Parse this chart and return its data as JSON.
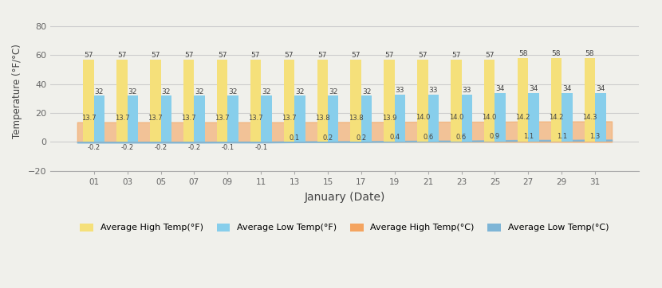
{
  "dates": [
    "01",
    "03",
    "05",
    "07",
    "09",
    "11",
    "13",
    "15",
    "17",
    "19",
    "21",
    "23",
    "25",
    "27",
    "29",
    "31"
  ],
  "high_f": [
    57,
    57,
    57,
    57,
    57,
    57,
    57,
    57,
    57,
    57,
    57,
    57,
    57,
    58,
    58,
    58
  ],
  "low_f": [
    32,
    32,
    32,
    32,
    32,
    32,
    32,
    32,
    32,
    33,
    33,
    33,
    34,
    34,
    34,
    34
  ],
  "high_c": [
    13.7,
    13.7,
    13.7,
    13.7,
    13.7,
    13.7,
    13.7,
    13.8,
    13.8,
    13.9,
    14.0,
    14.0,
    14.0,
    14.2,
    14.2,
    14.3
  ],
  "low_c": [
    -0.2,
    -0.2,
    -0.2,
    -0.2,
    -0.1,
    -0.1,
    0.1,
    0.2,
    0.2,
    0.4,
    0.6,
    0.6,
    0.9,
    1.1,
    1.1,
    1.3
  ],
  "color_high_f": "#F5E07A",
  "color_low_f": "#87CEEB",
  "color_high_c": "#F4A460",
  "color_low_c": "#7EB5D6",
  "xlabel": "January (Date)",
  "ylabel": "Temperature (°F/°C)",
  "ylim": [
    -20,
    90
  ],
  "yticks": [
    -20,
    0,
    20,
    40,
    60,
    80
  ],
  "bar_width": 0.32,
  "background_color": "#f0f0eb"
}
